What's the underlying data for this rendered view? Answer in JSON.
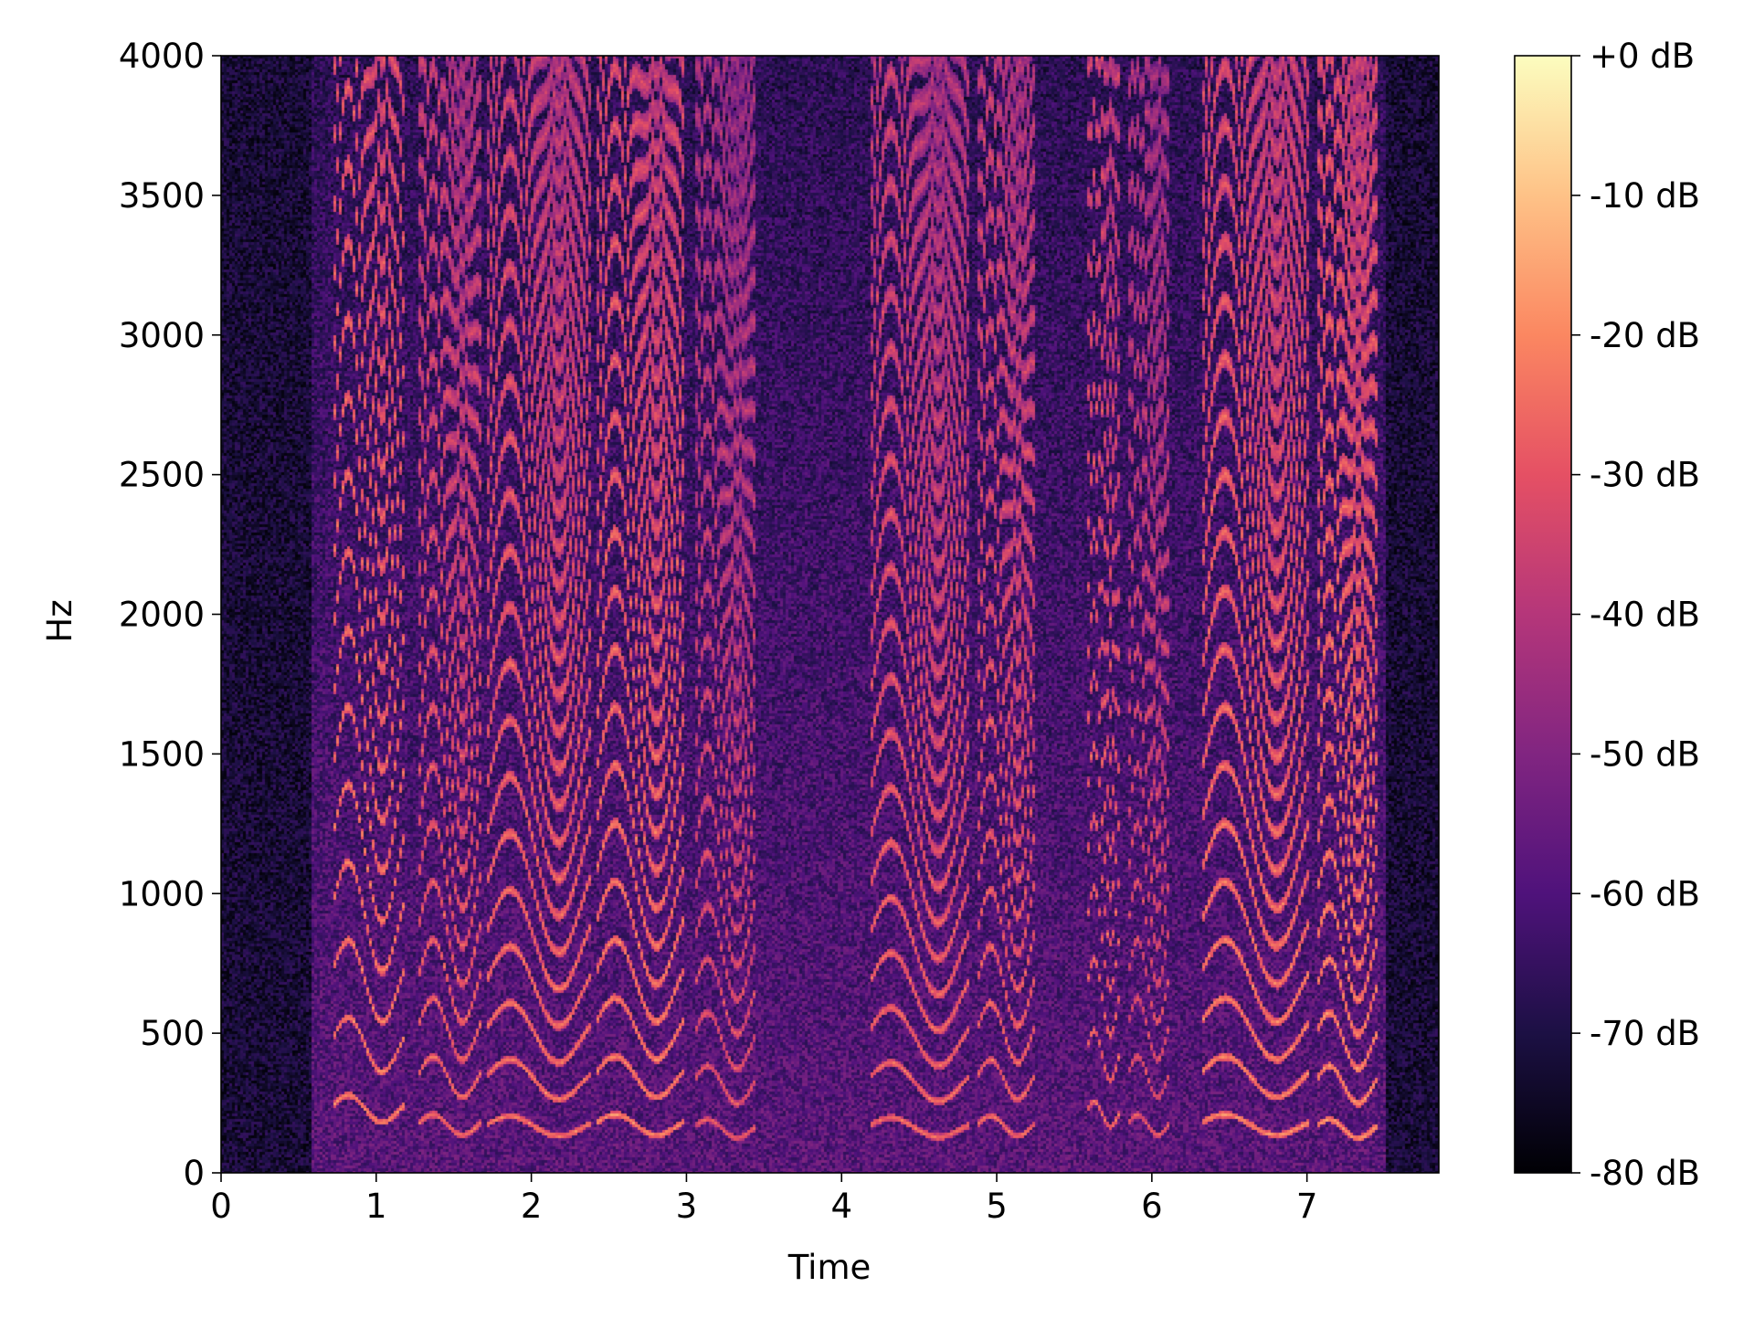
{
  "chart_data": {
    "type": "heatmap",
    "subtype": "spectrogram",
    "title": "",
    "xlabel": "Time",
    "ylabel": "Hz",
    "xlim": [
      0,
      7.85
    ],
    "ylim": [
      0,
      4000
    ],
    "xticks": [
      0,
      1,
      2,
      3,
      4,
      5,
      6,
      7
    ],
    "xtick_labels": [
      "0",
      "1",
      "2",
      "3",
      "4",
      "5",
      "6",
      "7"
    ],
    "yticks": [
      0,
      500,
      1000,
      1500,
      2000,
      2500,
      3000,
      3500,
      4000
    ],
    "ytick_labels": [
      "0",
      "500",
      "1000",
      "1500",
      "2000",
      "2500",
      "3000",
      "3500",
      "4000"
    ],
    "colorbar": {
      "colormap": "magma",
      "range_db": [
        -80,
        0
      ],
      "ticks": [
        0,
        -10,
        -20,
        -30,
        -40,
        -50,
        -60,
        -70,
        -80
      ],
      "tick_labels": [
        "+0 dB",
        "-10 dB",
        "-20 dB",
        "-30 dB",
        "-40 dB",
        "-50 dB",
        "-60 dB",
        "-70 dB",
        "-80 dB"
      ],
      "colors": [
        "#000004",
        "#1c1044",
        "#4f127b",
        "#812581",
        "#b5367a",
        "#e55064",
        "#fb8761",
        "#fec287",
        "#fcfdbf"
      ]
    },
    "voiced_segments": [
      {
        "start": 0.72,
        "end": 1.18,
        "f0": 240,
        "level_db": -18
      },
      {
        "start": 1.28,
        "end": 1.68,
        "f0": 180,
        "level_db": -22
      },
      {
        "start": 1.72,
        "end": 2.38,
        "f0": 175,
        "level_db": -20
      },
      {
        "start": 2.42,
        "end": 2.98,
        "f0": 180,
        "level_db": -18
      },
      {
        "start": 3.05,
        "end": 3.45,
        "f0": 165,
        "level_db": -26
      },
      {
        "start": 4.18,
        "end": 4.82,
        "f0": 170,
        "level_db": -22
      },
      {
        "start": 4.88,
        "end": 5.25,
        "f0": 175,
        "level_db": -22
      },
      {
        "start": 5.58,
        "end": 5.8,
        "f0": 220,
        "level_db": -22
      },
      {
        "start": 5.85,
        "end": 6.12,
        "f0": 180,
        "level_db": -26
      },
      {
        "start": 6.32,
        "end": 7.02,
        "f0": 180,
        "level_db": -18
      },
      {
        "start": 7.06,
        "end": 7.45,
        "f0": 165,
        "level_db": -16
      }
    ],
    "background_db": -72,
    "active_region_db": -58
  }
}
